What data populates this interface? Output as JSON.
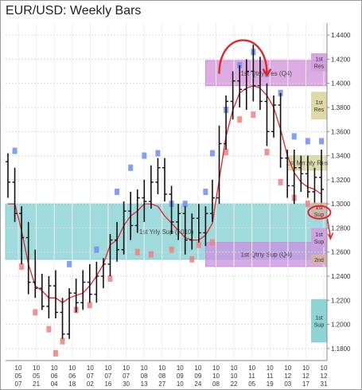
{
  "chart_data": {
    "type": "bar",
    "title": "EUR/USD: Weekly Bars",
    "ylim": [
      1.17,
      1.45
    ],
    "y_ticks": [
      "1.4400",
      "1.4200",
      "1.4000",
      "1.3800",
      "1.3600",
      "1.3400",
      "1.3200",
      "1.3000",
      "1.2800",
      "1.2600",
      "1.2400",
      "1.2200",
      "1.2000",
      "1.1800"
    ],
    "x_tick_labels": [
      [
        "10",
        "05",
        "07"
      ],
      [
        "10",
        "05",
        "21"
      ],
      [
        "10",
        "06",
        "04"
      ],
      [
        "10",
        "06",
        "18"
      ],
      [
        "10",
        "07",
        "02"
      ],
      [
        "10",
        "07",
        "16"
      ],
      [
        "10",
        "07",
        "30"
      ],
      [
        "10",
        "08",
        "13"
      ],
      [
        "10",
        "08",
        "27"
      ],
      [
        "10",
        "09",
        "10"
      ],
      [
        "10",
        "09",
        "24"
      ],
      [
        "10",
        "10",
        "08"
      ],
      [
        "10",
        "10",
        "22"
      ],
      [
        "10",
        "11",
        "05"
      ],
      [
        "10",
        "11",
        "19"
      ],
      [
        "10",
        "12",
        "03"
      ],
      [
        "10",
        "12",
        "17"
      ],
      [
        "10",
        "12",
        "31"
      ]
    ],
    "series": [],
    "bars": [
      {
        "week": 0,
        "open": 1.335,
        "high": 1.342,
        "low": 1.305,
        "close": 1.318
      },
      {
        "week": 1,
        "open": 1.318,
        "high": 1.33,
        "low": 1.285,
        "close": 1.292
      },
      {
        "week": 2,
        "open": 1.292,
        "high": 1.298,
        "low": 1.25,
        "close": 1.272
      },
      {
        "week": 3,
        "open": 1.272,
        "high": 1.285,
        "low": 1.225,
        "close": 1.235
      },
      {
        "week": 4,
        "open": 1.235,
        "high": 1.262,
        "low": 1.222,
        "close": 1.23
      },
      {
        "week": 5,
        "open": 1.23,
        "high": 1.242,
        "low": 1.212,
        "close": 1.215
      },
      {
        "week": 6,
        "open": 1.215,
        "high": 1.24,
        "low": 1.205,
        "close": 1.232
      },
      {
        "week": 7,
        "open": 1.232,
        "high": 1.245,
        "low": 1.205,
        "close": 1.21
      },
      {
        "week": 8,
        "open": 1.21,
        "high": 1.222,
        "low": 1.188,
        "close": 1.192
      },
      {
        "week": 9,
        "open": 1.192,
        "high": 1.23,
        "low": 1.188,
        "close": 1.226
      },
      {
        "week": 10,
        "open": 1.226,
        "high": 1.238,
        "low": 1.21,
        "close": 1.218
      },
      {
        "week": 11,
        "open": 1.218,
        "high": 1.245,
        "low": 1.212,
        "close": 1.235
      },
      {
        "week": 12,
        "open": 1.235,
        "high": 1.25,
        "low": 1.218,
        "close": 1.225
      },
      {
        "week": 13,
        "open": 1.225,
        "high": 1.252,
        "low": 1.218,
        "close": 1.24
      },
      {
        "week": 14,
        "open": 1.24,
        "high": 1.255,
        "low": 1.23,
        "close": 1.25
      },
      {
        "week": 15,
        "open": 1.25,
        "high": 1.275,
        "low": 1.24,
        "close": 1.27
      },
      {
        "week": 16,
        "open": 1.27,
        "high": 1.285,
        "low": 1.252,
        "close": 1.262
      },
      {
        "week": 17,
        "open": 1.262,
        "high": 1.302,
        "low": 1.258,
        "close": 1.294
      },
      {
        "week": 18,
        "open": 1.294,
        "high": 1.31,
        "low": 1.27,
        "close": 1.282
      },
      {
        "week": 19,
        "open": 1.282,
        "high": 1.312,
        "low": 1.276,
        "close": 1.305
      },
      {
        "week": 20,
        "open": 1.305,
        "high": 1.32,
        "low": 1.285,
        "close": 1.302
      },
      {
        "week": 21,
        "open": 1.302,
        "high": 1.332,
        "low": 1.296,
        "close": 1.318
      },
      {
        "week": 22,
        "open": 1.318,
        "high": 1.338,
        "low": 1.308,
        "close": 1.33
      },
      {
        "week": 23,
        "open": 1.33,
        "high": 1.338,
        "low": 1.302,
        "close": 1.308
      },
      {
        "week": 24,
        "open": 1.308,
        "high": 1.315,
        "low": 1.275,
        "close": 1.285
      },
      {
        "week": 25,
        "open": 1.285,
        "high": 1.3,
        "low": 1.27,
        "close": 1.292
      },
      {
        "week": 26,
        "open": 1.292,
        "high": 1.298,
        "low": 1.258,
        "close": 1.27
      },
      {
        "week": 27,
        "open": 1.27,
        "high": 1.292,
        "low": 1.262,
        "close": 1.288
      },
      {
        "week": 28,
        "open": 1.288,
        "high": 1.3,
        "low": 1.268,
        "close": 1.276
      },
      {
        "week": 29,
        "open": 1.276,
        "high": 1.298,
        "low": 1.265,
        "close": 1.292
      },
      {
        "week": 30,
        "open": 1.292,
        "high": 1.32,
        "low": 1.285,
        "close": 1.305
      },
      {
        "week": 31,
        "open": 1.305,
        "high": 1.365,
        "low": 1.3,
        "close": 1.35
      },
      {
        "week": 32,
        "open": 1.35,
        "high": 1.39,
        "low": 1.345,
        "close": 1.385
      },
      {
        "week": 33,
        "open": 1.385,
        "high": 1.41,
        "low": 1.37,
        "close": 1.402
      },
      {
        "week": 34,
        "open": 1.402,
        "high": 1.415,
        "low": 1.38,
        "close": 1.395
      },
      {
        "week": 35,
        "open": 1.395,
        "high": 1.42,
        "low": 1.378,
        "close": 1.41
      },
      {
        "week": 36,
        "open": 1.41,
        "high": 1.432,
        "low": 1.385,
        "close": 1.398
      },
      {
        "week": 37,
        "open": 1.398,
        "high": 1.422,
        "low": 1.378,
        "close": 1.385
      },
      {
        "week": 38,
        "open": 1.385,
        "high": 1.4,
        "low": 1.348,
        "close": 1.36
      },
      {
        "week": 39,
        "open": 1.36,
        "high": 1.39,
        "low": 1.355,
        "close": 1.382
      },
      {
        "week": 40,
        "open": 1.382,
        "high": 1.392,
        "low": 1.33,
        "close": 1.338
      },
      {
        "week": 41,
        "open": 1.338,
        "high": 1.345,
        "low": 1.305,
        "close": 1.315
      },
      {
        "week": 42,
        "open": 1.315,
        "high": 1.345,
        "low": 1.3,
        "close": 1.33
      },
      {
        "week": 43,
        "open": 1.33,
        "high": 1.34,
        "low": 1.31,
        "close": 1.325
      },
      {
        "week": 44,
        "open": 1.325,
        "high": 1.34,
        "low": 1.305,
        "close": 1.31
      },
      {
        "week": 45,
        "open": 1.31,
        "high": 1.33,
        "low": 1.3,
        "close": 1.322
      },
      {
        "week": 46,
        "open": 1.322,
        "high": 1.345,
        "low": 1.298,
        "close": 1.312
      }
    ],
    "moving_average": [
      1.3,
      1.3,
      1.278,
      1.25,
      1.232,
      1.228,
      1.222,
      1.222,
      1.218,
      1.222,
      1.224,
      1.226,
      1.232,
      1.24,
      1.25,
      1.266,
      1.27,
      1.282,
      1.29,
      1.294,
      1.3,
      1.3,
      1.298,
      1.29,
      1.284,
      1.278,
      1.272,
      1.27,
      1.27,
      1.274,
      1.284,
      1.32,
      1.356,
      1.378,
      1.392,
      1.396,
      1.398,
      1.396,
      1.39,
      1.38,
      1.362,
      1.34,
      1.326,
      1.318,
      1.314,
      1.312,
      1.308
    ],
    "upper_markers": [
      {
        "week": 1,
        "y": 1.344
      },
      {
        "week": 9,
        "y": 1.25
      },
      {
        "week": 13,
        "y": 1.262
      },
      {
        "week": 16,
        "y": 1.31
      },
      {
        "week": 18,
        "y": 1.33
      },
      {
        "week": 20,
        "y": 1.34
      },
      {
        "week": 22,
        "y": 1.342
      },
      {
        "week": 24,
        "y": 1.3
      },
      {
        "week": 26,
        "y": 1.3
      },
      {
        "week": 29,
        "y": 1.31
      },
      {
        "week": 30,
        "y": 1.342
      },
      {
        "week": 32,
        "y": 1.378
      },
      {
        "week": 34,
        "y": 1.415
      },
      {
        "week": 36,
        "y": 1.426
      },
      {
        "week": 38,
        "y": 1.408
      },
      {
        "week": 40,
        "y": 1.392
      },
      {
        "week": 42,
        "y": 1.356
      },
      {
        "week": 44,
        "y": 1.352
      },
      {
        "week": 46,
        "y": 1.352
      }
    ],
    "lower_markers": [
      {
        "week": 2,
        "y": 1.248
      },
      {
        "week": 4,
        "y": 1.21
      },
      {
        "week": 6,
        "y": 1.196
      },
      {
        "week": 7,
        "y": 1.176
      },
      {
        "week": 8,
        "y": 1.186
      },
      {
        "week": 10,
        "y": 1.212
      },
      {
        "week": 12,
        "y": 1.216
      },
      {
        "week": 15,
        "y": 1.238
      },
      {
        "week": 19,
        "y": 1.26
      },
      {
        "week": 21,
        "y": 1.258
      },
      {
        "week": 24,
        "y": 1.262
      },
      {
        "week": 27,
        "y": 1.254
      },
      {
        "week": 28,
        "y": 1.266
      },
      {
        "week": 30,
        "y": 1.268
      },
      {
        "week": 32,
        "y": 1.343
      },
      {
        "week": 34,
        "y": 1.37
      },
      {
        "week": 36,
        "y": 1.374
      },
      {
        "week": 38,
        "y": 1.343
      },
      {
        "week": 40,
        "y": 1.318
      },
      {
        "week": 42,
        "y": 1.305
      },
      {
        "week": 44,
        "y": 1.3
      }
    ],
    "zones": [
      {
        "label": "1st Yrly Sup (2010)",
        "y_low": 1.254,
        "y_high": 1.3,
        "color": "#7fcfd0"
      },
      {
        "label": "1st Qtrly Res (Q4)",
        "y_low": 1.398,
        "y_high": 1.419,
        "color": "#cf8fd8"
      },
      {
        "label": "1st Mnthly Res",
        "y_low": 1.328,
        "y_high": 1.34,
        "color": "#d2ce92"
      },
      {
        "label": "1st Qtrly Sup (Q4)",
        "y_low": 1.248,
        "y_high": 1.268,
        "color": "#c98fe0"
      }
    ],
    "right_labels": [
      {
        "label": "1st Res",
        "y_low": 1.41,
        "y_high": 1.425,
        "color": "#d39cde"
      },
      {
        "label": "1st Res",
        "y_low": 1.37,
        "y_high": 1.393,
        "color": "#dad69f"
      },
      {
        "label": "1st Sup",
        "y_low": 1.288,
        "y_high": 1.301,
        "color": "#d7b3a2"
      },
      {
        "label": "1st Sup",
        "y_low": 1.264,
        "y_high": 1.28,
        "color": "#d39cde"
      },
      {
        "label": "2nd",
        "y_low": 1.25,
        "y_high": 1.258,
        "color": "#d7b3a2"
      },
      {
        "label": "1st Sup",
        "y_low": 1.185,
        "y_high": 1.221,
        "color": "#7fcfd0"
      }
    ],
    "colors": {
      "bar": "#111111",
      "ma_line": "#e0262b",
      "upper_marker": "#6f8ff0",
      "lower_marker": "#f08080",
      "arc": "#e0262b",
      "grid": "#d8d8d8"
    }
  }
}
